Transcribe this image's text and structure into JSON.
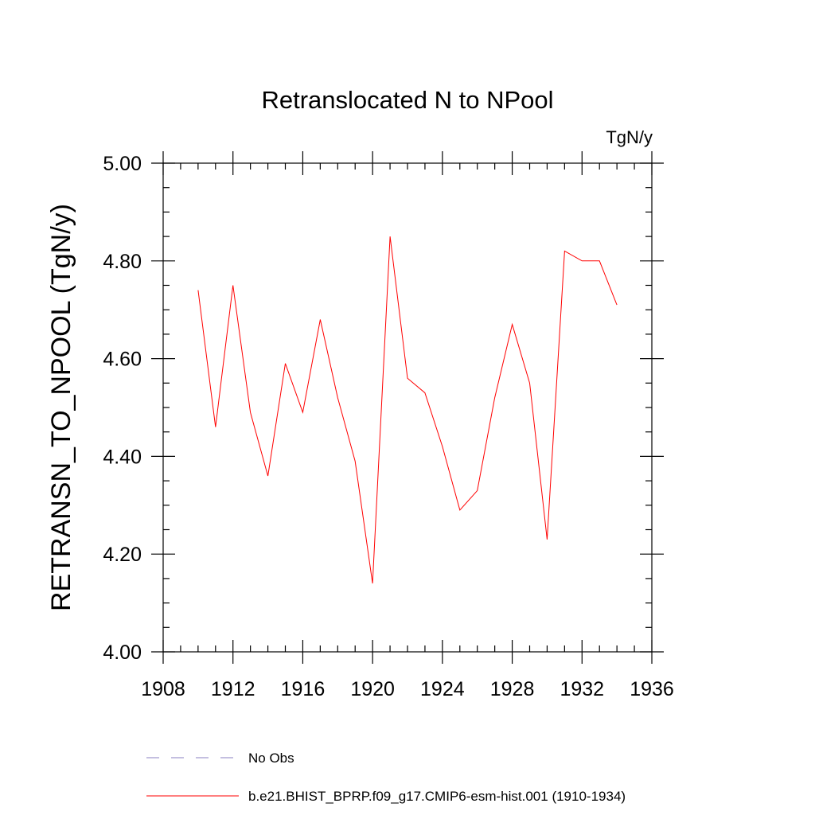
{
  "chart_data": {
    "type": "line",
    "title": "Retranslocated N to NPool",
    "units": "TgN/y",
    "ylabel": "RETRANSN_TO_NPOOL  (TgN/y)",
    "xlabel": "",
    "xlim": [
      1908,
      1936
    ],
    "ylim": [
      4.0,
      5.0
    ],
    "x_ticks": [
      1908,
      1912,
      1916,
      1920,
      1924,
      1928,
      1932,
      1936
    ],
    "x_tick_labels": [
      "1908",
      "1912",
      "1916",
      "1920",
      "1924",
      "1928",
      "1932",
      "1936"
    ],
    "x_minor_step": 1,
    "y_ticks": [
      4.0,
      4.2,
      4.4,
      4.6,
      4.8,
      5.0
    ],
    "y_tick_labels": [
      "4.00",
      "4.20",
      "4.40",
      "4.60",
      "4.80",
      "5.00"
    ],
    "y_minor_step": 0.05,
    "grid": false,
    "legend_position": "bottom",
    "series": [
      {
        "name": "b.e21.BHIST_BPRP.f09_g17.CMIP6-esm-hist.001 (1910-1934)",
        "color": "#ff0000",
        "style": "solid",
        "x": [
          1910,
          1911,
          1912,
          1913,
          1914,
          1915,
          1916,
          1917,
          1918,
          1919,
          1920,
          1921,
          1922,
          1923,
          1924,
          1925,
          1926,
          1927,
          1928,
          1929,
          1930,
          1931,
          1932,
          1933,
          1934
        ],
        "y": [
          4.74,
          4.46,
          4.75,
          4.49,
          4.36,
          4.59,
          4.49,
          4.68,
          4.52,
          4.39,
          4.14,
          4.85,
          4.56,
          4.53,
          4.42,
          4.29,
          4.33,
          4.52,
          4.67,
          4.55,
          4.23,
          4.82,
          4.8,
          4.8,
          4.71
        ]
      },
      {
        "name": "No Obs",
        "color": "#8a7fc0",
        "style": "dashed",
        "x": [],
        "y": []
      }
    ]
  }
}
